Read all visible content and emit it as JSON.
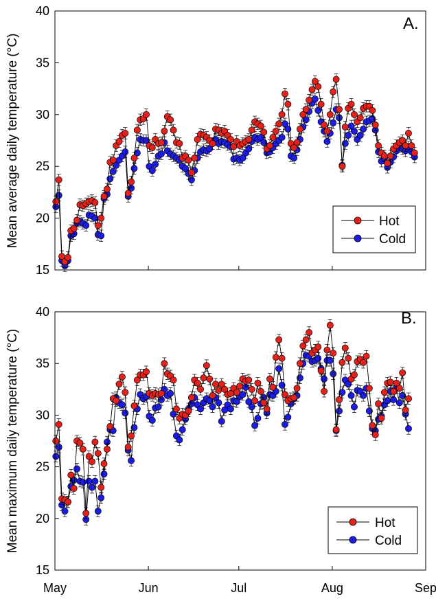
{
  "chart_data": [
    {
      "type": "line",
      "panel_label": "A.",
      "ylabel": "Mean average daily temperature (°C)",
      "ylim": [
        15,
        40
      ],
      "yticks": [
        15,
        20,
        25,
        30,
        35,
        40
      ],
      "xticks": [
        "May",
        "Jun",
        "Jul",
        "Aug",
        "Sep"
      ],
      "x_unit": "day index from 1 May",
      "legend_position": "lower-right",
      "series": [
        {
          "name": "Hot",
          "color": "#e8201a",
          "values": [
            21.6,
            23.7,
            16.3,
            15.8,
            16.2,
            18.8,
            19.0,
            19.8,
            21.3,
            21.2,
            21.4,
            21.6,
            21.7,
            21.5,
            19.3,
            20.0,
            22.1,
            22.8,
            25.4,
            25.6,
            27.0,
            27.4,
            28.0,
            28.2,
            22.4,
            23.5,
            25.8,
            28.5,
            29.5,
            29.6,
            30.0,
            27.0,
            26.8,
            27.6,
            27.2,
            27.3,
            28.4,
            29.8,
            29.5,
            28.5,
            27.3,
            27.2,
            25.8,
            26.0,
            25.6,
            24.4,
            25.8,
            27.6,
            28.1,
            28.0,
            27.8,
            27.5,
            27.2,
            28.6,
            28.5,
            28.2,
            28.4,
            28.0,
            27.6,
            26.9,
            27.4,
            27.0,
            27.2,
            27.4,
            27.6,
            28.5,
            29.3,
            29.1,
            28.9,
            28.3,
            26.7,
            27.0,
            27.8,
            28.4,
            29.1,
            30.0,
            32.0,
            31.0,
            27.2,
            26.8,
            27.3,
            28.6,
            30.0,
            30.5,
            31.4,
            32.4,
            33.2,
            32.7,
            31.0,
            29.0,
            28.4,
            30.0,
            32.2,
            33.4,
            30.5,
            25.0,
            28.8,
            30.6,
            31.0,
            30.0,
            29.3,
            29.7,
            30.6,
            30.8,
            30.8,
            30.4,
            29.0,
            27.0,
            26.3,
            26.0,
            25.3,
            26.0,
            26.7,
            27.0,
            27.3,
            27.5,
            27.0,
            28.2,
            27.0,
            26.3
          ]
        },
        {
          "name": "Cold",
          "color": "#1c1ce8",
          "values": [
            21.1,
            22.2,
            15.9,
            15.4,
            15.9,
            18.3,
            18.5,
            19.5,
            19.7,
            19.5,
            19.3,
            20.3,
            20.2,
            20.0,
            18.4,
            18.3,
            21.9,
            22.3,
            23.8,
            24.5,
            25.1,
            25.6,
            26.0,
            26.4,
            22.1,
            22.9,
            24.8,
            26.3,
            27.6,
            27.5,
            27.5,
            25.0,
            24.6,
            25.2,
            26.0,
            26.2,
            27.3,
            26.5,
            26.2,
            26.0,
            25.8,
            25.6,
            25.0,
            24.8,
            24.3,
            23.7,
            24.6,
            25.8,
            26.4,
            26.6,
            26.5,
            26.7,
            27.2,
            27.6,
            27.2,
            27.4,
            27.3,
            27.1,
            26.9,
            25.7,
            25.8,
            25.6,
            25.8,
            26.3,
            26.7,
            27.4,
            27.8,
            27.6,
            27.8,
            27.3,
            26.3,
            26.4,
            26.8,
            27.2,
            27.5,
            27.8,
            29.1,
            28.6,
            26.0,
            25.8,
            26.6,
            27.6,
            28.8,
            29.5,
            30.3,
            31.1,
            31.5,
            30.4,
            29.3,
            28.4,
            27.4,
            28.2,
            29.2,
            30.5,
            29.7,
            25.1,
            27.2,
            28.0,
            28.9,
            28.4,
            27.6,
            28.0,
            28.6,
            29.3,
            29.4,
            29.6,
            28.5,
            26.4,
            25.5,
            25.8,
            24.9,
            25.4,
            25.9,
            26.5,
            26.9,
            26.7,
            26.5,
            26.9,
            26.4,
            25.9
          ]
        }
      ]
    },
    {
      "type": "line",
      "panel_label": "B.",
      "ylabel": "Mean maximum daily temperature (°C)",
      "ylim": [
        15,
        40
      ],
      "yticks": [
        15,
        20,
        25,
        30,
        35,
        40
      ],
      "xticks": [
        "May",
        "Jun",
        "Jul",
        "Aug",
        "Sep"
      ],
      "x_unit": "day index from 1 May",
      "legend_position": "lower-right",
      "series": [
        {
          "name": "Hot",
          "color": "#e8201a",
          "values": [
            27.5,
            29.1,
            21.9,
            21.8,
            21.6,
            24.2,
            22.9,
            27.5,
            27.3,
            26.7,
            20.5,
            26.0,
            25.5,
            27.4,
            26.3,
            23.0,
            25.3,
            26.7,
            28.9,
            31.6,
            31.4,
            33.0,
            33.7,
            32.2,
            26.9,
            28.0,
            30.9,
            33.4,
            33.9,
            33.9,
            34.2,
            32.1,
            31.9,
            32.1,
            32.0,
            32.1,
            35.0,
            34.0,
            33.8,
            33.4,
            30.6,
            29.7,
            30.1,
            30.0,
            30.4,
            31.7,
            33.4,
            33.1,
            32.5,
            33.6,
            34.8,
            33.5,
            31.9,
            33.0,
            32.4,
            33.0,
            32.5,
            32.0,
            32.1,
            32.6,
            32.2,
            32.8,
            33.5,
            33.3,
            33.4,
            32.5,
            31.4,
            33.1,
            32.3,
            31.2,
            30.6,
            33.5,
            32.7,
            35.6,
            37.3,
            35.5,
            32.0,
            31.4,
            31.6,
            31.7,
            32.6,
            35.0,
            36.7,
            37.3,
            38.0,
            36.0,
            36.3,
            36.6,
            34.3,
            32.3,
            36.3,
            38.7,
            36.0,
            28.6,
            31.5,
            35.1,
            36.5,
            35.5,
            33.5,
            33.9,
            35.2,
            35.4,
            35.1,
            35.7,
            32.6,
            29.0,
            28.1,
            31.1,
            29.7,
            32.2,
            33.1,
            33.2,
            32.3,
            33.1,
            32.6,
            34.1,
            30.5,
            31.6
          ]
        },
        {
          "name": "Cold",
          "color": "#1c1ce8",
          "values": [
            26.0,
            26.9,
            21.3,
            20.7,
            21.6,
            23.1,
            23.7,
            24.8,
            23.6,
            23.5,
            19.9,
            23.6,
            23.0,
            23.6,
            20.7,
            22.0,
            24.3,
            27.4,
            28.6,
            28.5,
            31.7,
            31.2,
            31.0,
            30.2,
            26.6,
            25.6,
            28.8,
            30.6,
            32.0,
            31.6,
            31.8,
            29.9,
            29.5,
            30.7,
            30.8,
            31.5,
            32.5,
            31.9,
            32.1,
            30.1,
            28.0,
            27.6,
            28.6,
            29.6,
            30.6,
            31.1,
            31.7,
            31.0,
            30.6,
            31.2,
            31.6,
            31.4,
            30.8,
            31.7,
            31.2,
            29.4,
            30.5,
            31.0,
            30.6,
            31.4,
            31.3,
            31.8,
            32.0,
            32.7,
            31.3,
            30.8,
            29.0,
            29.7,
            31.1,
            31.7,
            30.2,
            32.0,
            31.9,
            32.3,
            34.5,
            32.9,
            29.1,
            29.8,
            31.1,
            31.6,
            31.9,
            33.6,
            35.0,
            35.8,
            35.7,
            35.2,
            35.3,
            35.5,
            34.5,
            33.5,
            35.3,
            35.3,
            34.0,
            28.5,
            30.4,
            32.2,
            33.4,
            33.0,
            31.9,
            30.8,
            32.4,
            32.3,
            31.9,
            32.6,
            30.4,
            28.7,
            28.5,
            29.6,
            29.9,
            31.0,
            31.4,
            32.3,
            31.5,
            32.6,
            31.2,
            31.9,
            30.1,
            28.7
          ]
        }
      ]
    }
  ]
}
